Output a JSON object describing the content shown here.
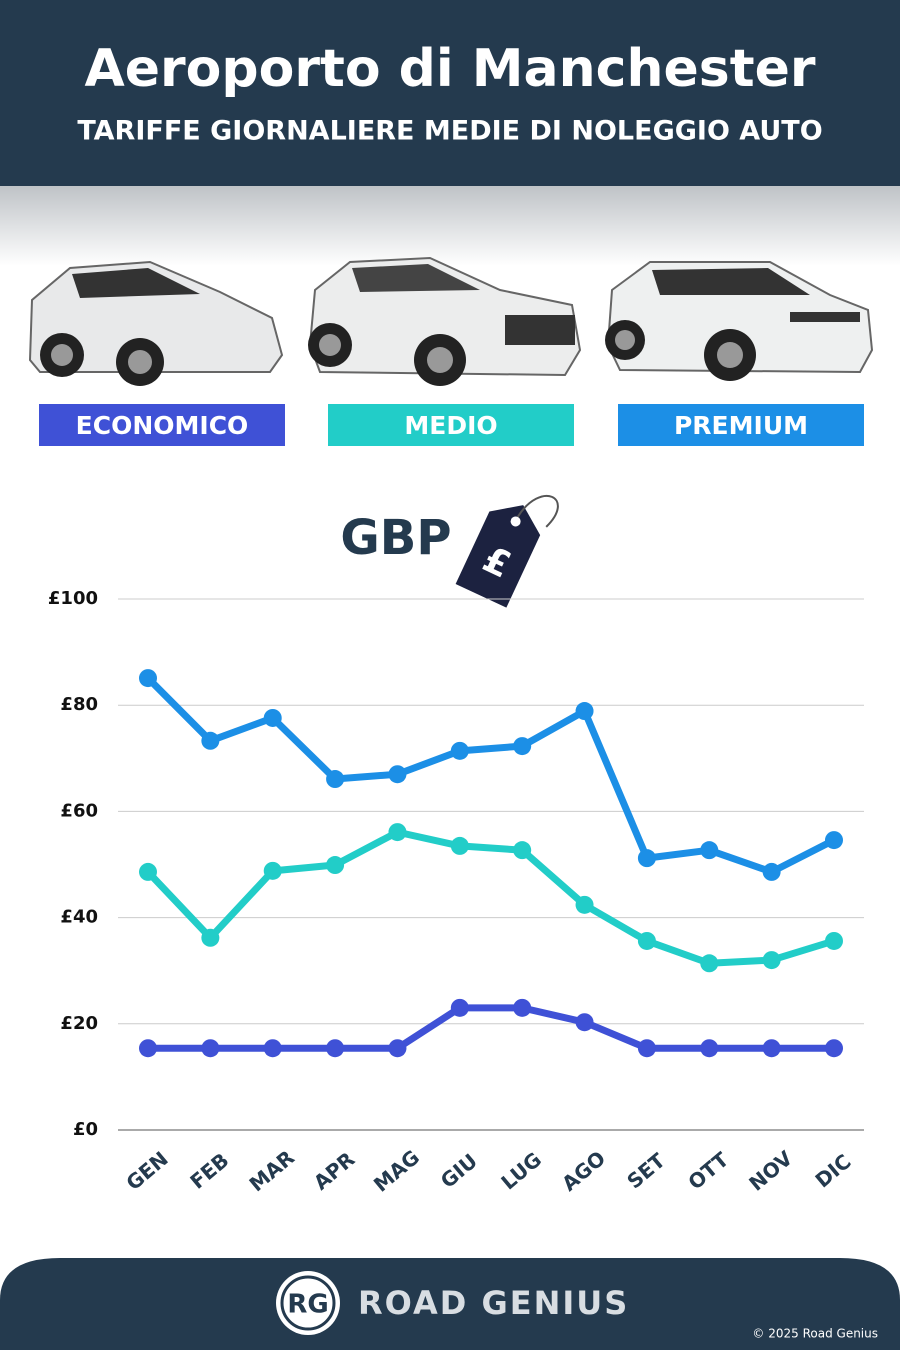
{
  "header": {
    "title": "Aeroporto di Manchester",
    "subtitle": "TARIFFE GIORNALIERE MEDIE DI NOLEGGIO AUTO"
  },
  "chart_data": {
    "type": "line",
    "unit_label": "GBP",
    "unit_symbol": "£",
    "categories": [
      "GEN",
      "FEB",
      "MAR",
      "APR",
      "MAG",
      "GIU",
      "LUG",
      "AGO",
      "SET",
      "OTT",
      "NOV",
      "DIC"
    ],
    "series": [
      {
        "name": "ECONOMICO",
        "color": "#3f51d6",
        "values": [
          15.4,
          15.4,
          15.4,
          15.4,
          15.4,
          23,
          23,
          20.3,
          15.4,
          15.4,
          15.4,
          15.4
        ]
      },
      {
        "name": "MEDIO",
        "color": "#22cdc8",
        "values": [
          48.6,
          36.2,
          48.8,
          49.9,
          56.1,
          53.5,
          52.7,
          42.4,
          35.6,
          31.4,
          32,
          35.6
        ]
      },
      {
        "name": "PREMIUM",
        "color": "#1c8fe6",
        "values": [
          85.1,
          73.3,
          77.6,
          66.1,
          67,
          71.4,
          72.3,
          78.9,
          51.2,
          52.7,
          48.6,
          54.6
        ]
      }
    ],
    "ylim": [
      0,
      100
    ],
    "yticks": [
      {
        "value": 0,
        "label": "£0"
      },
      {
        "value": 20,
        "label": "£20"
      },
      {
        "value": 40,
        "label": "£40"
      },
      {
        "value": 60,
        "label": "£60"
      },
      {
        "value": 80,
        "label": "£80"
      },
      {
        "value": 100,
        "label": "£100"
      }
    ],
    "grid": true
  },
  "footer": {
    "logo": "RG",
    "brand": "ROAD GENIUS",
    "copyright": "© 2025 Road Genius"
  }
}
